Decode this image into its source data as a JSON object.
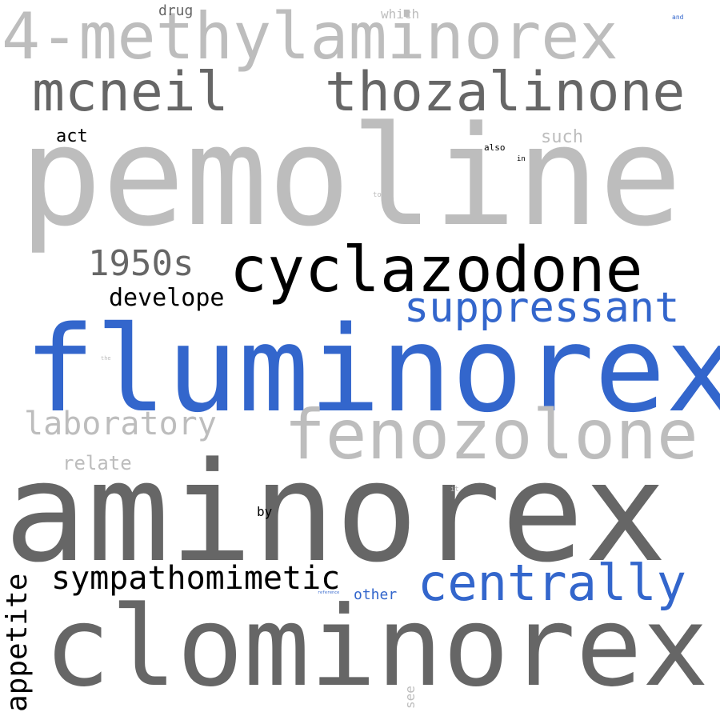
{
  "palette": {
    "background": "#ffffff",
    "light_gray": "#bdbdbd",
    "dark_gray": "#666666",
    "black": "#000000",
    "blue": "#3366cc"
  },
  "words": {
    "pemoline": "pemoline",
    "aminorex": "aminorex",
    "clominorex": "clominorex",
    "fluminorex": "fluminorex",
    "methylaminorex": "4-methylaminorex",
    "cyclazodone": "cyclazodone",
    "fenozolone": "fenozolone",
    "thozalinone": "thozalinone",
    "mcneil": "mcneil",
    "suppressant": "suppressant",
    "centrally": "centrally",
    "sympathomimetic": "sympathomimetic",
    "appetite": "appetite",
    "year_1950s": "1950s",
    "laboratory": "laboratory",
    "develope": "develope",
    "relate": "relate",
    "act": "act",
    "drug": "drug",
    "which": "which",
    "such": "such",
    "also": "also",
    "in": "in",
    "to": "to",
    "and": "and",
    "by": "by",
    "other": "other",
    "see": "see",
    "it": "it",
    "the": "the",
    "reference": "reference"
  }
}
